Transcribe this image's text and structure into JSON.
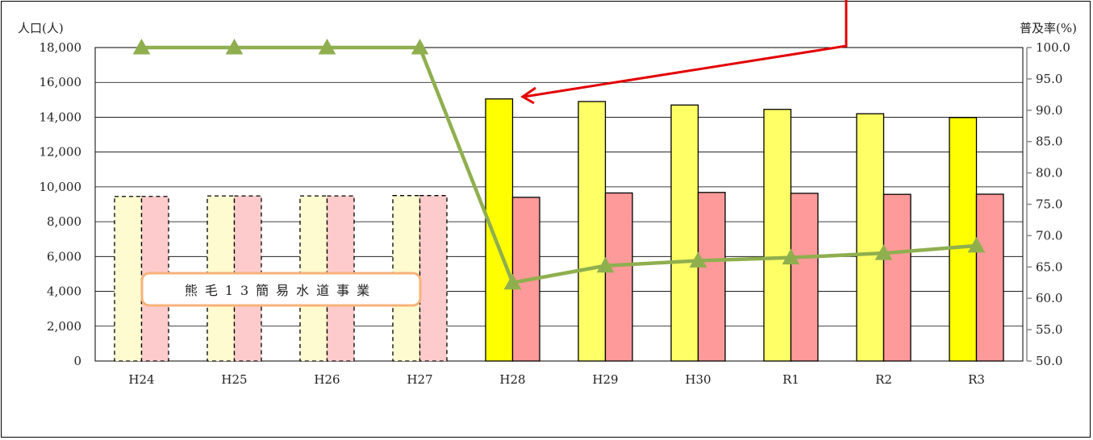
{
  "chart_data": {
    "type": "bar",
    "left_axis_label": "人口(人)",
    "right_axis_label": "普及率(%)",
    "annotation": "熊毛13簡易水道事業",
    "categories": [
      "H24",
      "H25",
      "H26",
      "H27",
      "H28",
      "H29",
      "H30",
      "R1",
      "R2",
      "R3"
    ],
    "left_ticks": [
      "0",
      "2,000",
      "4,000",
      "6,000",
      "8,000",
      "10,000",
      "12,000",
      "14,000",
      "16,000",
      "18,000"
    ],
    "right_ticks": [
      "50.0",
      "55.0",
      "60.0",
      "65.0",
      "70.0",
      "75.0",
      "80.0",
      "85.0",
      "90.0",
      "95.0",
      "100.0"
    ],
    "ylim_left": [
      0,
      18000
    ],
    "ylim_right": [
      50,
      100
    ],
    "grid": true,
    "series": [
      {
        "axis": "left",
        "kind": "bar",
        "values": [
          9450,
          9480,
          9480,
          9500,
          15050,
          14900,
          14700,
          14450,
          14200,
          13980
        ]
      },
      {
        "axis": "left",
        "kind": "bar",
        "values": [
          9450,
          9480,
          9480,
          9500,
          9400,
          9650,
          9680,
          9630,
          9570,
          9580
        ]
      },
      {
        "axis": "right",
        "kind": "line",
        "values": [
          100.0,
          100.0,
          100.0,
          100.0,
          62.5,
          65.2,
          66.0,
          66.5,
          67.2,
          68.4
        ]
      }
    ],
    "colors": {
      "bar1_estimated": "#fdfbcf",
      "bar2_estimated": "#fdcbcb",
      "bar1_first": "#ffff00",
      "bar1": "#ffff66",
      "bar2": "#ff9a9a",
      "line": "#8faf4f",
      "arrow": "#e30000",
      "label_border": "#f7b27a"
    }
  }
}
